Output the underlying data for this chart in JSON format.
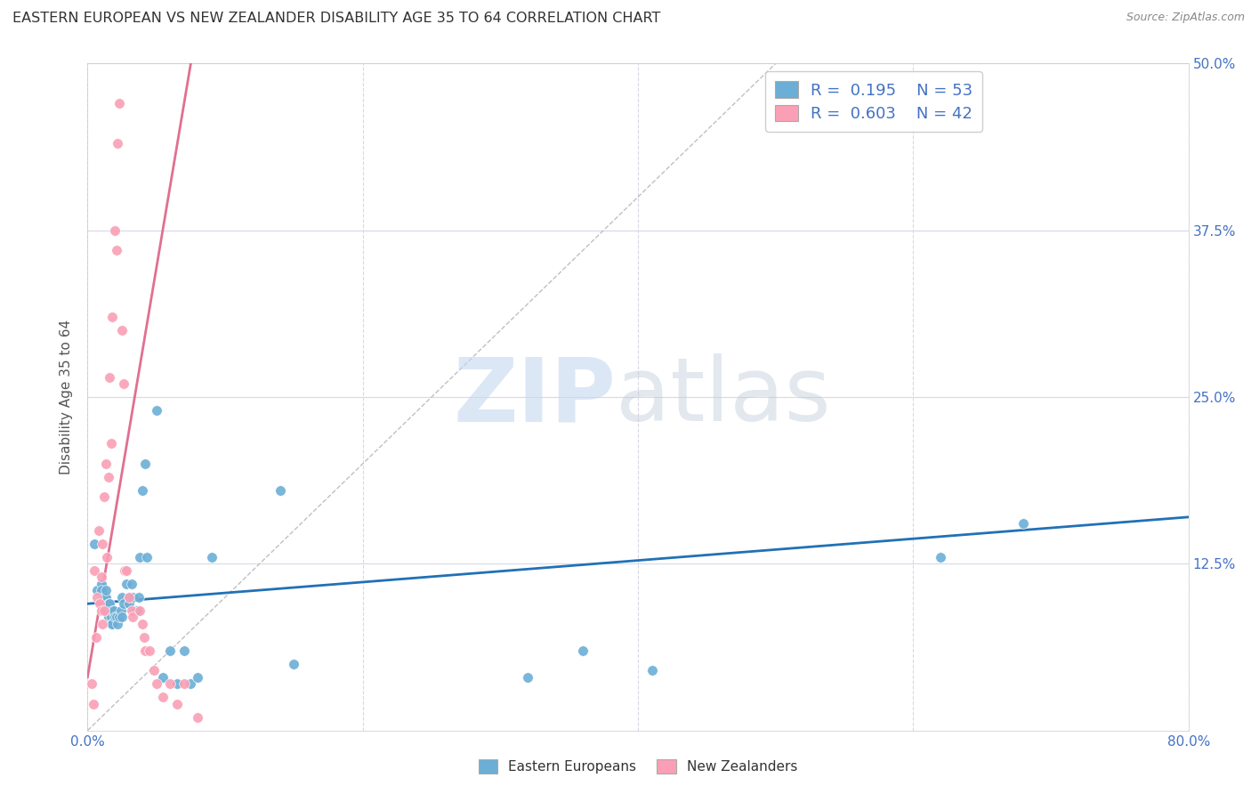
{
  "title": "EASTERN EUROPEAN VS NEW ZEALANDER DISABILITY AGE 35 TO 64 CORRELATION CHART",
  "source": "Source: ZipAtlas.com",
  "xlabel": "",
  "ylabel": "Disability Age 35 to 64",
  "xlim": [
    0.0,
    0.8
  ],
  "ylim": [
    0.0,
    0.5
  ],
  "blue_color": "#6baed6",
  "pink_color": "#fa9fb5",
  "blue_line_color": "#2171b5",
  "pink_line_color": "#e07090",
  "legend_label_blue": "Eastern Europeans",
  "legend_label_pink": "New Zealanders",
  "blue_scatter_x": [
    0.005,
    0.007,
    0.01,
    0.01,
    0.012,
    0.013,
    0.013,
    0.014,
    0.015,
    0.015,
    0.015,
    0.016,
    0.017,
    0.017,
    0.018,
    0.018,
    0.019,
    0.02,
    0.021,
    0.022,
    0.023,
    0.024,
    0.025,
    0.025,
    0.026,
    0.028,
    0.03,
    0.03,
    0.032,
    0.033,
    0.034,
    0.035,
    0.036,
    0.037,
    0.038,
    0.04,
    0.042,
    0.043,
    0.05,
    0.055,
    0.06,
    0.065,
    0.07,
    0.075,
    0.08,
    0.09,
    0.14,
    0.15,
    0.32,
    0.36,
    0.41,
    0.62,
    0.68
  ],
  "blue_scatter_y": [
    0.14,
    0.105,
    0.11,
    0.105,
    0.1,
    0.1,
    0.105,
    0.09,
    0.085,
    0.09,
    0.095,
    0.095,
    0.085,
    0.08,
    0.08,
    0.09,
    0.09,
    0.085,
    0.085,
    0.08,
    0.085,
    0.09,
    0.085,
    0.1,
    0.095,
    0.11,
    0.1,
    0.095,
    0.11,
    0.1,
    0.09,
    0.09,
    0.09,
    0.1,
    0.13,
    0.18,
    0.2,
    0.13,
    0.24,
    0.04,
    0.06,
    0.035,
    0.06,
    0.035,
    0.04,
    0.13,
    0.18,
    0.05,
    0.04,
    0.06,
    0.045,
    0.13,
    0.155
  ],
  "pink_scatter_x": [
    0.003,
    0.004,
    0.005,
    0.006,
    0.007,
    0.008,
    0.009,
    0.01,
    0.01,
    0.011,
    0.011,
    0.012,
    0.012,
    0.013,
    0.014,
    0.015,
    0.016,
    0.017,
    0.018,
    0.02,
    0.021,
    0.022,
    0.023,
    0.025,
    0.026,
    0.027,
    0.028,
    0.03,
    0.032,
    0.033,
    0.038,
    0.04,
    0.041,
    0.042,
    0.045,
    0.048,
    0.05,
    0.055,
    0.06,
    0.065,
    0.07,
    0.08
  ],
  "pink_scatter_y": [
    0.035,
    0.02,
    0.12,
    0.07,
    0.1,
    0.15,
    0.095,
    0.115,
    0.09,
    0.14,
    0.08,
    0.175,
    0.09,
    0.2,
    0.13,
    0.19,
    0.265,
    0.215,
    0.31,
    0.375,
    0.36,
    0.44,
    0.47,
    0.3,
    0.26,
    0.12,
    0.12,
    0.1,
    0.09,
    0.085,
    0.09,
    0.08,
    0.07,
    0.06,
    0.06,
    0.045,
    0.035,
    0.025,
    0.035,
    0.02,
    0.035,
    0.01
  ],
  "blue_trend_x": [
    0.0,
    0.8
  ],
  "blue_trend_y": [
    0.095,
    0.16
  ],
  "pink_trend_x": [
    0.0,
    0.075
  ],
  "pink_trend_y": [
    0.04,
    0.5
  ],
  "diag_line_x": [
    0.0,
    0.5
  ],
  "diag_line_y": [
    0.0,
    0.5
  ]
}
